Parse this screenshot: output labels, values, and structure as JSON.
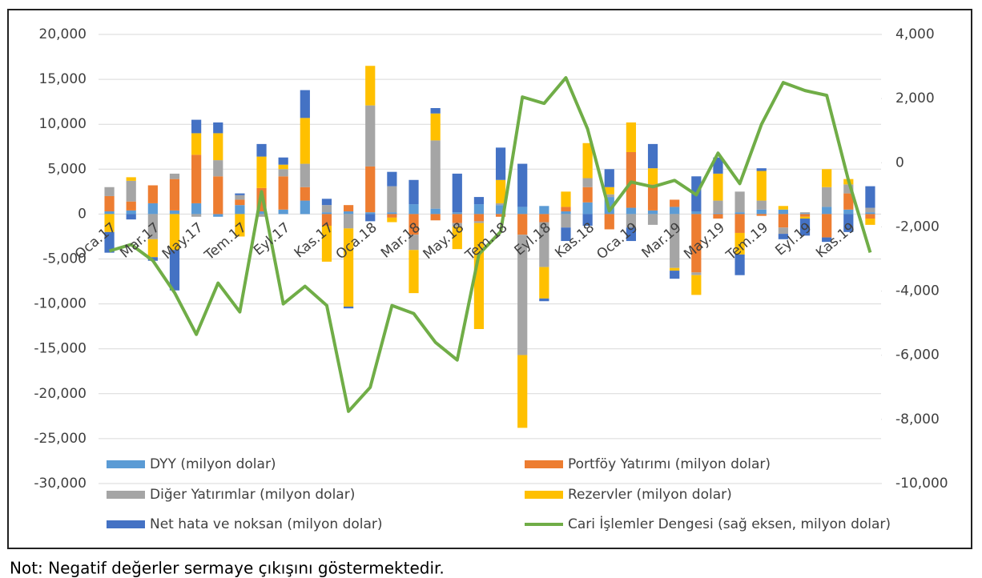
{
  "chart_data": {
    "type": "bar",
    "stacked": true,
    "categories": [
      "Oca.17",
      null,
      "Mar.17",
      null,
      "May.17",
      null,
      "Tem.17",
      null,
      "Eyl.17",
      null,
      "Kas.17",
      null,
      "Oca.18",
      null,
      "Mar.18",
      null,
      "May.18",
      null,
      "Tem.18",
      null,
      "Eyl.18",
      null,
      "Kas.18",
      null,
      "Oca.19",
      null,
      "Mar.19",
      null,
      "May.19",
      null,
      "Tem.19",
      null,
      "Eyl.19",
      null,
      "Kas.19",
      null
    ],
    "series": [
      {
        "name": "DYY (milyon dolar)",
        "color": "#5b9bd5",
        "values": [
          300,
          400,
          1200,
          400,
          1200,
          -300,
          1000,
          300,
          500,
          1500,
          200,
          300,
          200,
          200,
          1100,
          600,
          200,
          1100,
          1000,
          800,
          900,
          300,
          1300,
          1900,
          700,
          400,
          800,
          300,
          100,
          200,
          500,
          500,
          100,
          800,
          500,
          200
        ]
      },
      {
        "name": "Portföy Yatırımı (milyon dolar)",
        "color": "#ed7d31",
        "values": [
          1700,
          1000,
          2000,
          3500,
          5400,
          4200,
          600,
          2600,
          3700,
          1500,
          -1300,
          700,
          5100,
          -400,
          -2300,
          -700,
          -1000,
          -800,
          -300,
          -2300,
          -900,
          500,
          1700,
          -1700,
          6200,
          2900,
          800,
          -6500,
          -500,
          -2100,
          -200,
          -1500,
          -300,
          -2600,
          1800,
          -500
        ]
      },
      {
        "name": "Diğer Yatırımlar (milyon dolar)",
        "color": "#a5a5a5",
        "values": [
          1000,
          2300,
          -2800,
          600,
          -300,
          1800,
          500,
          -300,
          800,
          2600,
          800,
          -1600,
          6800,
          2900,
          -1700,
          7600,
          -400,
          -200,
          200,
          -13400,
          -5000,
          -1500,
          1000,
          300,
          -1500,
          -1200,
          -6000,
          -300,
          1400,
          2300,
          1000,
          -700,
          100,
          2200,
          1000,
          500
        ]
      },
      {
        "name": "Rezervler (milyon dolar)",
        "color": "#ffc000",
        "values": [
          -2000,
          400,
          -2000,
          -4000,
          2400,
          3000,
          -2500,
          3500,
          500,
          5100,
          -4000,
          -8700,
          4400,
          -500,
          -4800,
          3000,
          -2500,
          -11800,
          2600,
          -8100,
          -3500,
          1700,
          3900,
          800,
          3300,
          1800,
          -300,
          -2200,
          3000,
          -2400,
          3300,
          400,
          -200,
          2000,
          600,
          -700
        ]
      },
      {
        "name": "Net hata ve noksan (milyon dolar)",
        "color": "#4472c4",
        "values": [
          -2300,
          -600,
          -400,
          -4500,
          1500,
          1200,
          200,
          1400,
          800,
          3100,
          700,
          -200,
          -800,
          1600,
          2700,
          600,
          4300,
          800,
          3600,
          4800,
          -300,
          -1500,
          -1300,
          2000,
          -1500,
          2700,
          -900,
          3900,
          1800,
          -2300,
          300,
          -600,
          -1900,
          -500,
          -2000,
          2400
        ]
      },
      {
        "name": "Cari İşlemler Dengesi (sağ eksen, milyon dolar)",
        "color": "#70ad47",
        "type": "line",
        "axis": "y2",
        "values": [
          -2750,
          -2550,
          -3050,
          -4050,
          -5350,
          -3750,
          -4650,
          -900,
          -4400,
          -3850,
          -4450,
          -7750,
          -7000,
          -4450,
          -4700,
          -5600,
          -6150,
          -2850,
          -2150,
          2050,
          1850,
          2650,
          1050,
          -1500,
          -600,
          -750,
          -550,
          -1000,
          300,
          -650,
          1200,
          2500,
          2250,
          2100,
          -550,
          -2800
        ]
      }
    ],
    "ylim": [
      -30000,
      20000
    ],
    "yticks": [
      {
        "value": -30000,
        "label": "-30,000"
      },
      {
        "value": -25000,
        "label": "-25,000"
      },
      {
        "value": -20000,
        "label": "-20,000"
      },
      {
        "value": -15000,
        "label": "-15,000"
      },
      {
        "value": -10000,
        "label": "-10,000"
      },
      {
        "value": -5000,
        "label": "-5,000"
      },
      0,
      {
        "value": 5000,
        "label": "5,000"
      },
      {
        "value": 10000,
        "label": "10,000"
      },
      {
        "value": 15000,
        "label": "15,000"
      },
      {
        "value": 20000,
        "label": "20,000"
      }
    ],
    "y2lim": [
      -10000,
      4000
    ],
    "y2ticks": [
      {
        "value": -10000,
        "label": "-10,000"
      },
      {
        "value": -8000,
        "label": "-8,000"
      },
      {
        "value": -6000,
        "label": "-6,000"
      },
      {
        "value": -4000,
        "label": "-4,000"
      },
      {
        "value": -2000,
        "label": "-2,000"
      },
      0,
      {
        "value": 2000,
        "label": "2,000"
      },
      {
        "value": 4000,
        "label": "4,000"
      }
    ],
    "grid": true,
    "legend": "bottom",
    "note": "Not: Negatif değerler sermaye çıkışını göstermektedir."
  }
}
